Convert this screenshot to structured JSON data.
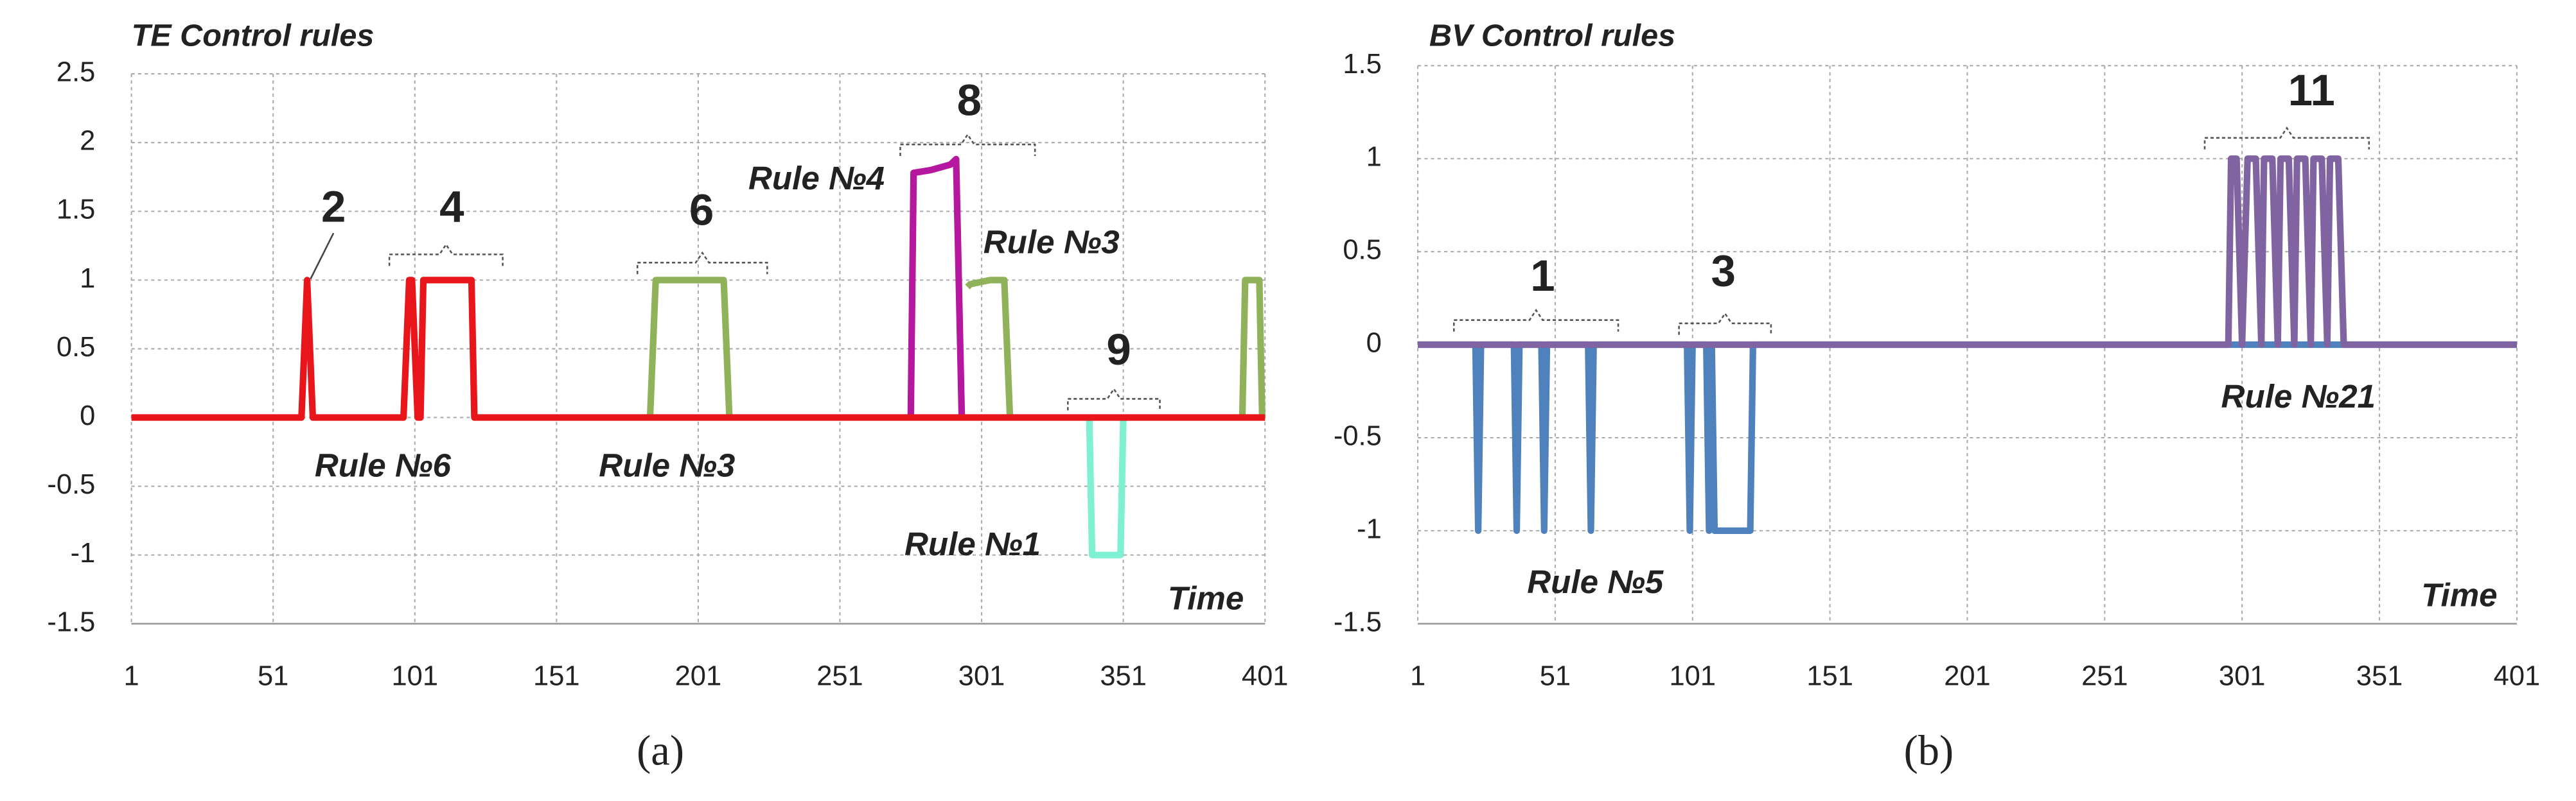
{
  "chart_data": [
    {
      "type": "line",
      "title": "TE Control rules",
      "x_label": "Time",
      "caption": "(a)",
      "xlim": [
        1,
        401
      ],
      "xticks": [
        1,
        51,
        101,
        151,
        201,
        251,
        301,
        351,
        401
      ],
      "ylim": [
        -1.5,
        2.5
      ],
      "yticks": [
        -1.5,
        -1,
        -0.5,
        0,
        0.5,
        1,
        1.5,
        2,
        2.5
      ],
      "grid": true,
      "annotations": [
        "2",
        "4",
        "6",
        "8",
        "9",
        "Rule №6",
        "Rule №3",
        "Rule №4",
        "Rule №3",
        "Rule №1"
      ],
      "series": [
        {
          "color": "#8fb25a",
          "x": [
            184,
            186,
            210,
            212,
            null,
            296,
            297,
            304,
            309,
            311,
            null,
            393,
            394,
            399,
            400
          ],
          "values": [
            0,
            1,
            1,
            0,
            null,
            0.95,
            0.97,
            1,
            1,
            0,
            null,
            0,
            1,
            1,
            0
          ]
        },
        {
          "color": "#b5179e",
          "x": [
            276,
            277,
            283,
            290,
            292,
            294
          ],
          "values": [
            0,
            1.78,
            1.8,
            1.84,
            1.88,
            0
          ]
        },
        {
          "color": "#7ff0d2",
          "x": [
            339,
            340,
            350,
            351
          ],
          "values": [
            0,
            -1,
            -1,
            0
          ]
        },
        {
          "color": "#e8161b",
          "x": [
            1,
            61,
            63,
            65,
            97,
            99,
            100,
            102,
            103,
            104,
            106,
            121,
            122,
            401
          ],
          "values": [
            0,
            0,
            1,
            0,
            0,
            1,
            1,
            0,
            0,
            1,
            1,
            1,
            0,
            0
          ]
        }
      ]
    },
    {
      "type": "line",
      "title": "BV Control rules",
      "x_label": "Time",
      "caption": "(b)",
      "xlim": [
        1,
        401
      ],
      "xticks": [
        1,
        51,
        101,
        151,
        201,
        251,
        301,
        351,
        401
      ],
      "ylim": [
        -1.5,
        1.5
      ],
      "yticks": [
        -1.5,
        -1,
        -0.5,
        0,
        0.5,
        1,
        1.5
      ],
      "grid": true,
      "annotations": [
        "1",
        "3",
        "11",
        "Rule №5",
        "Rule №21"
      ],
      "series": [
        {
          "color": "#4f81bd",
          "x": [
            1,
            22,
            23,
            24,
            36,
            37,
            38,
            46,
            47,
            48,
            63,
            64,
            65,
            99,
            100,
            101,
            106,
            107,
            108,
            109,
            122,
            123,
            401
          ],
          "values": [
            0,
            0,
            -1,
            0,
            0,
            -1,
            0,
            0,
            -1,
            0,
            0,
            -1,
            0,
            0,
            -1,
            0,
            0,
            -1,
            0,
            -1,
            -1,
            0,
            0
          ]
        },
        {
          "color": "#8064a2",
          "x": [
            1,
            296,
            297,
            299,
            301,
            303,
            306,
            308,
            309,
            312,
            314,
            315,
            318,
            320,
            321,
            324,
            326,
            327,
            330,
            332,
            333,
            336,
            338,
            401
          ],
          "values": [
            0,
            0,
            1,
            1,
            0,
            1,
            1,
            0,
            1,
            1,
            0,
            1,
            1,
            0,
            1,
            1,
            0,
            1,
            1,
            0,
            1,
            1,
            0,
            0
          ]
        }
      ]
    }
  ]
}
